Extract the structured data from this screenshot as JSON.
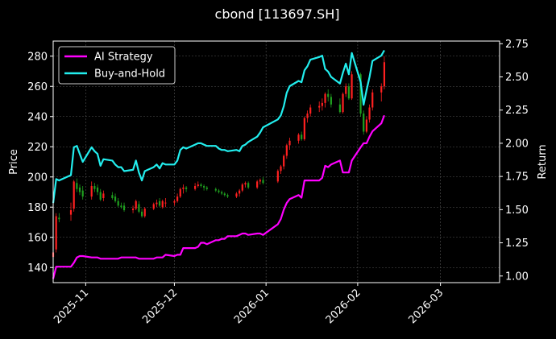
{
  "chart_data": {
    "type": "line",
    "title": "cbond [113697.SH]",
    "xlabel": "",
    "ylabel": "Price",
    "y2label": "Return",
    "x_ticks": [
      "2025-11",
      "2025-12",
      "2026-01",
      "2026-02",
      "2026-03"
    ],
    "x_range": [
      "2025-10-21",
      "2026-03-21"
    ],
    "y_ticks": [
      "140",
      "160",
      "180",
      "200",
      "220",
      "240",
      "260",
      "280"
    ],
    "ylim": [
      130,
      290
    ],
    "y2_ticks": [
      "1.00",
      "1.25",
      "1.50",
      "1.75",
      "2.00",
      "2.25",
      "2.50",
      "2.75"
    ],
    "y2lim": [
      0.95,
      2.77
    ],
    "grid": true,
    "legend_position": "top-left",
    "colors": {
      "background": "#000000",
      "up_candle": "#ff2020",
      "down_candle": "#1fa01f",
      "ai_strategy": "#ff00ff",
      "buy_and_hold": "#22eeee",
      "grid": "#555555"
    },
    "series": [
      {
        "name": "AI Strategy",
        "axis": "right",
        "x": [
          "2025-10-21",
          "2025-10-22",
          "2025-10-23",
          "2025-10-27",
          "2025-10-28",
          "2025-10-29",
          "2025-10-30",
          "2025-10-31",
          "2025-11-03",
          "2025-11-04",
          "2025-11-05",
          "2025-11-06",
          "2025-11-07",
          "2025-11-10",
          "2025-11-11",
          "2025-11-12",
          "2025-11-13",
          "2025-11-14",
          "2025-11-17",
          "2025-11-18",
          "2025-11-19",
          "2025-11-20",
          "2025-11-21",
          "2025-11-24",
          "2025-11-25",
          "2025-11-26",
          "2025-11-27",
          "2025-11-28",
          "2025-12-01",
          "2025-12-02",
          "2025-12-03",
          "2025-12-04",
          "2025-12-05",
          "2025-12-08",
          "2025-12-09",
          "2025-12-10",
          "2025-12-11",
          "2025-12-12",
          "2025-12-15",
          "2025-12-16",
          "2025-12-17",
          "2025-12-18",
          "2025-12-19",
          "2025-12-22",
          "2025-12-23",
          "2025-12-24",
          "2025-12-25",
          "2025-12-26",
          "2025-12-29",
          "2025-12-30",
          "2025-12-31",
          "2026-01-05",
          "2026-01-06",
          "2026-01-07",
          "2026-01-08",
          "2026-01-09",
          "2026-01-12",
          "2026-01-13",
          "2026-01-14",
          "2026-01-15",
          "2026-01-16",
          "2026-01-19",
          "2026-01-20",
          "2026-01-21",
          "2026-01-22",
          "2026-01-23",
          "2026-01-26",
          "2026-01-27",
          "2026-01-28",
          "2026-01-29",
          "2026-01-30",
          "2026-02-02",
          "2026-02-03",
          "2026-02-04",
          "2026-02-05",
          "2026-02-06",
          "2026-02-09",
          "2026-02-10"
        ],
        "values": [
          0.98,
          1.07,
          1.07,
          1.07,
          1.1,
          1.14,
          1.15,
          1.15,
          1.14,
          1.14,
          1.14,
          1.13,
          1.13,
          1.13,
          1.13,
          1.13,
          1.14,
          1.14,
          1.14,
          1.14,
          1.13,
          1.13,
          1.13,
          1.13,
          1.14,
          1.14,
          1.14,
          1.16,
          1.15,
          1.16,
          1.16,
          1.21,
          1.21,
          1.21,
          1.22,
          1.25,
          1.25,
          1.24,
          1.27,
          1.27,
          1.28,
          1.28,
          1.3,
          1.3,
          1.31,
          1.32,
          1.32,
          1.31,
          1.32,
          1.32,
          1.31,
          1.39,
          1.43,
          1.5,
          1.55,
          1.58,
          1.61,
          1.59,
          1.72,
          1.72,
          1.72,
          1.72,
          1.74,
          1.83,
          1.82,
          1.84,
          1.87,
          1.78,
          1.78,
          1.78,
          1.87,
          1.97,
          2.0,
          2.0,
          2.05,
          2.09,
          2.15,
          2.21
        ]
      },
      {
        "name": "Buy-and-Hold",
        "axis": "right",
        "x": [
          "2025-10-21",
          "2025-10-22",
          "2025-10-23",
          "2025-10-27",
          "2025-10-28",
          "2025-10-29",
          "2025-10-30",
          "2025-10-31",
          "2025-11-03",
          "2025-11-04",
          "2025-11-05",
          "2025-11-06",
          "2025-11-07",
          "2025-11-10",
          "2025-11-11",
          "2025-11-12",
          "2025-11-13",
          "2025-11-14",
          "2025-11-17",
          "2025-11-18",
          "2025-11-19",
          "2025-11-20",
          "2025-11-21",
          "2025-11-24",
          "2025-11-25",
          "2025-11-26",
          "2025-11-27",
          "2025-11-28",
          "2025-12-01",
          "2025-12-02",
          "2025-12-03",
          "2025-12-04",
          "2025-12-05",
          "2025-12-08",
          "2025-12-09",
          "2025-12-10",
          "2025-12-11",
          "2025-12-12",
          "2025-12-15",
          "2025-12-16",
          "2025-12-17",
          "2025-12-18",
          "2025-12-19",
          "2025-12-22",
          "2025-12-23",
          "2025-12-24",
          "2025-12-25",
          "2025-12-26",
          "2025-12-29",
          "2025-12-30",
          "2025-12-31",
          "2026-01-05",
          "2026-01-06",
          "2026-01-07",
          "2026-01-08",
          "2026-01-09",
          "2026-01-12",
          "2026-01-13",
          "2026-01-14",
          "2026-01-15",
          "2026-01-16",
          "2026-01-19",
          "2026-01-20",
          "2026-01-21",
          "2026-01-22",
          "2026-01-23",
          "2026-01-26",
          "2026-01-27",
          "2026-01-28",
          "2026-01-29",
          "2026-01-30",
          "2026-02-02",
          "2026-02-03",
          "2026-02-04",
          "2026-02-05",
          "2026-02-06",
          "2026-02-09",
          "2026-02-10"
        ],
        "values": [
          1.55,
          1.73,
          1.72,
          1.76,
          1.97,
          1.98,
          1.92,
          1.86,
          1.97,
          1.94,
          1.92,
          1.83,
          1.88,
          1.87,
          1.84,
          1.82,
          1.82,
          1.79,
          1.8,
          1.87,
          1.78,
          1.72,
          1.79,
          1.82,
          1.84,
          1.81,
          1.85,
          1.84,
          1.84,
          1.87,
          1.95,
          1.97,
          1.96,
          1.99,
          2.0,
          2.0,
          1.99,
          1.98,
          1.98,
          1.96,
          1.95,
          1.95,
          1.94,
          1.95,
          1.94,
          1.98,
          1.99,
          2.01,
          2.05,
          2.08,
          2.12,
          2.18,
          2.21,
          2.28,
          2.38,
          2.43,
          2.47,
          2.46,
          2.55,
          2.58,
          2.63,
          2.65,
          2.66,
          2.56,
          2.54,
          2.5,
          2.45,
          2.53,
          2.6,
          2.52,
          2.68,
          2.46,
          2.29,
          2.4,
          2.5,
          2.62,
          2.66,
          2.7
        ]
      }
    ],
    "candles": {
      "axis": "left",
      "ohlc": [
        [
          "2025-10-21",
          147,
          151,
          145,
          150
        ],
        [
          "2025-10-22",
          152,
          176,
          150,
          174
        ],
        [
          "2025-10-23",
          173,
          176,
          170,
          172
        ],
        [
          "2025-10-27",
          175,
          183,
          171,
          178
        ],
        [
          "2025-10-28",
          179,
          198,
          177,
          197
        ],
        [
          "2025-10-29",
          196,
          199,
          190,
          192
        ],
        [
          "2025-10-30",
          193,
          195,
          188,
          190
        ],
        [
          "2025-10-31",
          191,
          194,
          185,
          187
        ],
        [
          "2025-11-03",
          187,
          197,
          185,
          194
        ],
        [
          "2025-11-04",
          194,
          196,
          190,
          192
        ],
        [
          "2025-11-05",
          193,
          195,
          188,
          190
        ],
        [
          "2025-11-06",
          190,
          192,
          184,
          185
        ],
        [
          "2025-11-07",
          186,
          191,
          184,
          189
        ],
        [
          "2025-11-10",
          188,
          190,
          185,
          186
        ],
        [
          "2025-11-11",
          187,
          189,
          183,
          184
        ],
        [
          "2025-11-12",
          184,
          186,
          180,
          181
        ],
        [
          "2025-11-13",
          181,
          183,
          179,
          180
        ],
        [
          "2025-11-14",
          181,
          183,
          177,
          178
        ],
        [
          "2025-11-17",
          178,
          181,
          176,
          179
        ],
        [
          "2025-11-18",
          179,
          185,
          178,
          184
        ],
        [
          "2025-11-19",
          182,
          184,
          176,
          177
        ],
        [
          "2025-11-20",
          177,
          179,
          173,
          174
        ],
        [
          "2025-11-21",
          174,
          180,
          173,
          179
        ],
        [
          "2025-11-24",
          179,
          183,
          178,
          182
        ],
        [
          "2025-11-25",
          182,
          185,
          180,
          183
        ],
        [
          "2025-11-26",
          184,
          186,
          180,
          181
        ],
        [
          "2025-11-27",
          180,
          185,
          179,
          184
        ],
        [
          "2025-11-28",
          183,
          186,
          180,
          183
        ],
        [
          "2025-12-01",
          183,
          185,
          181,
          184
        ],
        [
          "2025-12-02",
          184,
          189,
          183,
          187
        ],
        [
          "2025-12-03",
          187,
          193,
          186,
          192
        ],
        [
          "2025-12-04",
          192,
          195,
          189,
          193
        ],
        [
          "2025-12-05",
          193,
          194,
          190,
          192
        ],
        [
          "2025-12-08",
          192,
          196,
          191,
          194
        ],
        [
          "2025-12-09",
          194,
          197,
          193,
          195
        ],
        [
          "2025-12-10",
          195,
          196,
          193,
          194
        ],
        [
          "2025-12-11",
          194,
          195,
          191,
          193
        ],
        [
          "2025-12-12",
          193,
          194,
          191,
          192
        ],
        [
          "2025-12-15",
          192,
          193,
          190,
          191
        ],
        [
          "2025-12-16",
          191,
          192,
          189,
          190
        ],
        [
          "2025-12-17",
          190,
          191,
          188,
          189
        ],
        [
          "2025-12-18",
          189,
          190,
          187,
          188
        ],
        [
          "2025-12-19",
          188,
          189,
          186,
          187
        ],
        [
          "2025-12-22",
          187,
          190,
          186,
          189
        ],
        [
          "2025-12-23",
          189,
          192,
          187,
          191
        ],
        [
          "2025-12-24",
          191,
          196,
          190,
          195
        ],
        [
          "2025-12-25",
          195,
          197,
          193,
          196
        ],
        [
          "2025-12-26",
          196,
          197,
          192,
          193
        ],
        [
          "2025-12-29",
          193,
          198,
          192,
          197
        ],
        [
          "2025-12-30",
          197,
          199,
          195,
          198
        ],
        [
          "2025-12-31",
          198,
          200,
          195,
          196
        ],
        [
          "2026-01-05",
          197,
          205,
          196,
          204
        ],
        [
          "2026-01-06",
          204,
          208,
          202,
          207
        ],
        [
          "2026-01-07",
          207,
          215,
          205,
          214
        ],
        [
          "2026-01-08",
          214,
          222,
          212,
          221
        ],
        [
          "2026-01-09",
          221,
          226,
          218,
          224
        ],
        [
          "2026-01-12",
          224,
          229,
          222,
          228
        ],
        [
          "2026-01-13",
          228,
          230,
          224,
          225
        ],
        [
          "2026-01-14",
          225,
          240,
          224,
          239
        ],
        [
          "2026-01-15",
          239,
          244,
          236,
          242
        ],
        [
          "2026-01-16",
          242,
          248,
          240,
          246
        ],
        [
          "2026-01-19",
          246,
          250,
          243,
          247
        ],
        [
          "2026-01-20",
          247,
          252,
          244,
          249
        ],
        [
          "2026-01-21",
          249,
          256,
          246,
          255
        ],
        [
          "2026-01-22",
          255,
          258,
          250,
          253
        ],
        [
          "2026-01-23",
          253,
          255,
          246,
          248
        ],
        [
          "2026-01-26",
          248,
          252,
          242,
          243
        ],
        [
          "2026-01-27",
          243,
          256,
          242,
          255
        ],
        [
          "2026-01-28",
          255,
          262,
          253,
          260
        ],
        [
          "2026-01-29",
          260,
          262,
          251,
          252
        ],
        [
          "2026-01-30",
          252,
          270,
          251,
          268
        ],
        [
          "2026-02-02",
          268,
          269,
          240,
          242
        ],
        [
          "2026-02-03",
          242,
          244,
          228,
          230
        ],
        [
          "2026-02-04",
          230,
          240,
          229,
          238
        ],
        [
          "2026-02-05",
          238,
          248,
          236,
          246
        ],
        [
          "2026-02-06",
          246,
          258,
          244,
          256
        ],
        [
          "2026-02-09",
          256,
          262,
          250,
          260
        ],
        [
          "2026-02-10",
          260,
          280,
          258,
          276
        ]
      ]
    }
  }
}
